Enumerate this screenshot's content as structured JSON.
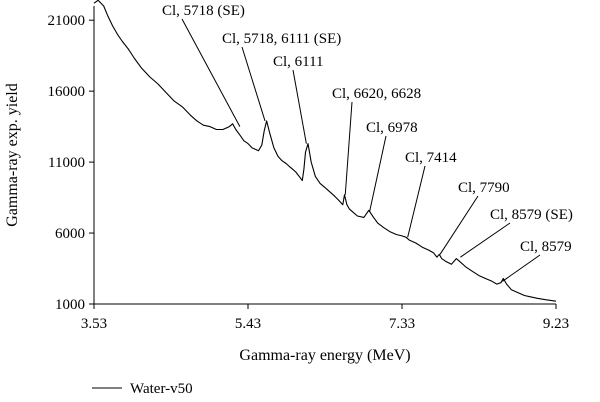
{
  "chart_data": {
    "type": "line",
    "xlabel": "Gamma-ray energy (MeV)",
    "ylabel": "Gamma-ray exp. yield",
    "xlim": [
      3.53,
      9.23
    ],
    "ylim": [
      1000,
      22000
    ],
    "xticks": [
      3.53,
      5.43,
      7.33,
      9.23
    ],
    "xtick_labels": [
      "3.53",
      "5.43",
      "7.33",
      "9.23"
    ],
    "yticks": [
      1000,
      6000,
      11000,
      16000,
      21000
    ],
    "ytick_labels": [
      "1000",
      "6000",
      "11000",
      "16000",
      "21000"
    ],
    "grid": false,
    "legend": "bottom-left",
    "series": [
      {
        "name": "Water-v50",
        "color": "#000000",
        "x": [
          3.53,
          3.58,
          3.65,
          3.7,
          3.76,
          3.82,
          3.88,
          3.95,
          4.03,
          4.12,
          4.22,
          4.32,
          4.42,
          4.52,
          4.62,
          4.72,
          4.8,
          4.88,
          4.96,
          5.04,
          5.12,
          5.2,
          5.24,
          5.28,
          5.33,
          5.38,
          5.43,
          5.48,
          5.52,
          5.56,
          5.6,
          5.63,
          5.66,
          5.7,
          5.75,
          5.8,
          5.85,
          5.9,
          5.94,
          5.98,
          6.02,
          6.06,
          6.1,
          6.12,
          6.14,
          6.17,
          6.21,
          6.26,
          6.32,
          6.38,
          6.44,
          6.5,
          6.55,
          6.6,
          6.62,
          6.65,
          6.68,
          6.72,
          6.78,
          6.86,
          6.92,
          6.98,
          7.03,
          7.1,
          7.18,
          7.26,
          7.33,
          7.38,
          7.42,
          7.5,
          7.58,
          7.66,
          7.72,
          7.76,
          7.79,
          7.82,
          7.87,
          7.94,
          8.0,
          8.06,
          8.12,
          8.2,
          8.28,
          8.36,
          8.44,
          8.5,
          8.55,
          8.58,
          8.62,
          8.68,
          8.76,
          8.84,
          8.92,
          9.0,
          9.1,
          9.23
        ],
        "y": [
          22200,
          22400,
          22000,
          21300,
          20600,
          20000,
          19500,
          19000,
          18300,
          17600,
          17000,
          16500,
          15900,
          15300,
          14900,
          14300,
          13900,
          13600,
          13500,
          13300,
          13300,
          13500,
          13700,
          13300,
          12900,
          12500,
          12300,
          12000,
          11900,
          11800,
          12200,
          13200,
          13900,
          13000,
          12000,
          11400,
          11100,
          10900,
          10700,
          10500,
          10300,
          10000,
          9700,
          10500,
          11700,
          12300,
          11000,
          10000,
          9500,
          9200,
          8900,
          8600,
          8300,
          8000,
          8700,
          8000,
          7700,
          7500,
          7200,
          7100,
          7600,
          7100,
          6700,
          6400,
          6100,
          5900,
          5800,
          5700,
          5500,
          5300,
          5000,
          4800,
          4600,
          4300,
          4500,
          4200,
          4000,
          3800,
          4200,
          3900,
          3600,
          3300,
          3000,
          2800,
          2600,
          2400,
          2500,
          2800,
          2400,
          2000,
          1800,
          1600,
          1500,
          1400,
          1300,
          1200
        ]
      }
    ],
    "annotations": [
      {
        "text": "Cl, 5718 (SE)",
        "x": 5.33,
        "y": 13500
      },
      {
        "text": "Cl, 5718, 6111 (SE)",
        "x": 5.64,
        "y": 13900
      },
      {
        "text": "Cl, 6111",
        "x": 6.15,
        "y": 12300
      },
      {
        "text": "Cl, 6620, 6628",
        "x": 6.63,
        "y": 8700
      },
      {
        "text": "Cl, 6978",
        "x": 6.93,
        "y": 7500
      },
      {
        "text": "Cl, 7414",
        "x": 7.4,
        "y": 5700
      },
      {
        "text": "Cl, 7790",
        "x": 7.8,
        "y": 4500
      },
      {
        "text": "Cl, 8579 (SE)",
        "x": 8.05,
        "y": 4300
      },
      {
        "text": "Cl, 8579",
        "x": 8.57,
        "y": 2600
      }
    ]
  }
}
